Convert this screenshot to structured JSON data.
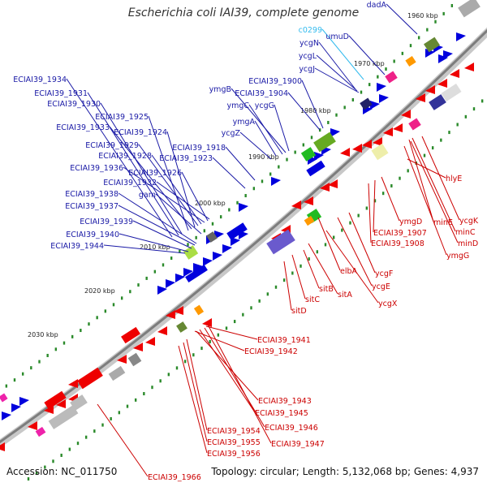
{
  "title": "Escherichia coli IAI39, complete genome",
  "accession": "Accession: NC_011750",
  "summary": "Topology: circular; Length: 5,132,068 bp; Genes: 4,937",
  "colors": {
    "backbone": "#888888",
    "forward_gene": "#0000dd",
    "reverse_gene": "#ee0000",
    "forward_label": "#1a1aa6",
    "reverse_label": "#cc0000",
    "highlight_label": "#33bbee",
    "tick_dot": "#2a8a2a"
  },
  "scale_labels": [
    "1960 kbp",
    "1970 kbp",
    "1980 kbp",
    "1990 kbp",
    "2000 kbp",
    "2010 kbp",
    "2020 kbp",
    "2030 kbp"
  ],
  "forward_labels": [
    "ECIAI39_1934",
    "ECIAI39_1931",
    "ECIAI39_1930",
    "ECIAI39_1925",
    "ECIAI39_1933",
    "ECIAI39_1924",
    "ECIAI39_1929",
    "ECIAI39_1928",
    "ECIAI39_1936",
    "ECIAI39_1926",
    "ECIAI39_1932",
    "gam",
    "ECIAI39_1938",
    "ECIAI39_1937",
    "ECIAI39_1939",
    "ECIAI39_1940",
    "ECIAI39_1944",
    "ECIAI39_1918",
    "ECIAI39_1923",
    "ymgB",
    "ymgC",
    "ycgG",
    "ymgA",
    "ycgZ",
    "ECIAI39_1900",
    "ECIAI39_1904",
    "ycgN",
    "ycgL",
    "ycgJ",
    "umuD",
    "dadA"
  ],
  "highlight_labels": [
    "c0299"
  ],
  "reverse_labels": [
    "hlyE",
    "ycgK",
    "minE",
    "minC",
    "minD",
    "ymgG",
    "ymgD",
    "ECIAI39_1907",
    "ECIAI39_1908",
    "ycgF",
    "ycgE",
    "ycgX",
    "elbA",
    "sitA",
    "sitB",
    "sitC",
    "sitD",
    "ECIAI39_1941",
    "ECIAI39_1942",
    "ECIAI39_1943",
    "ECIAI39_1945",
    "ECIAI39_1946",
    "ECIAI39_1947",
    "ECIAI39_1954",
    "ECIAI39_1955",
    "ECIAI39_1956",
    "ECIAI39_1966"
  ]
}
